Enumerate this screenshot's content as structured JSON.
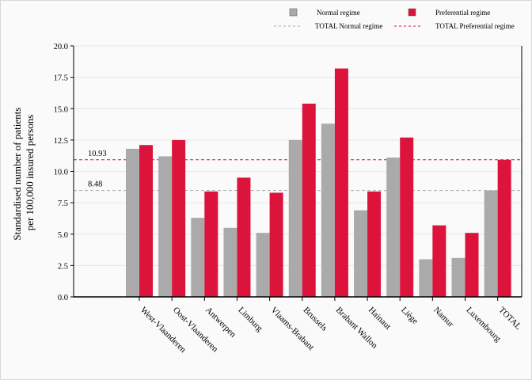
{
  "chart_data": {
    "type": "bar",
    "ylabel_line1": "Standardised number of patients",
    "ylabel_line2": "per 100,000 insured persons",
    "ylim": [
      0,
      20
    ],
    "yticks": [
      "0.0",
      "2.5",
      "5.0",
      "7.5",
      "10.0",
      "12.5",
      "15.0",
      "17.5",
      "20.0"
    ],
    "grid": true,
    "legend_position": "top-right",
    "categories": [
      "West-Vlaanderen",
      "Oost-Vlaanderen",
      "Antwerpen",
      "Limburg",
      "Vlaams-Brabant",
      "Brussels",
      "Brabant Wallon",
      "Hainaut",
      "Liège",
      "Namur",
      "Luxembourg",
      "TOTAL"
    ],
    "series": [
      {
        "name": "Normal regime",
        "color": "#aaaaaa",
        "values": [
          11.8,
          11.2,
          6.3,
          5.5,
          5.1,
          12.5,
          13.8,
          6.9,
          11.1,
          3.0,
          3.1,
          8.48
        ]
      },
      {
        "name": "Preferential regime",
        "color": "#dc143c",
        "values": [
          12.1,
          12.5,
          8.4,
          9.5,
          8.3,
          15.4,
          18.2,
          8.4,
          12.7,
          5.7,
          5.1,
          10.93
        ]
      }
    ],
    "reference_lines": [
      {
        "name": "TOTAL Normal regime",
        "value": 8.48,
        "label": "8.48",
        "color": "#aaaaaa"
      },
      {
        "name": "TOTAL Preferential regime",
        "value": 10.93,
        "label": "10.93",
        "color": "#dc143c"
      }
    ]
  }
}
